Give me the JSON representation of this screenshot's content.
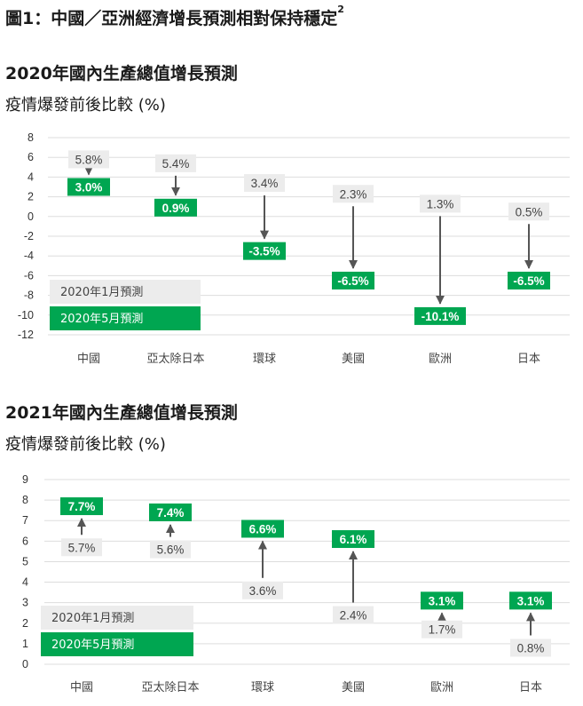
{
  "figure_title": "圖1：中國／亞洲經濟增長預測相對保持穩定",
  "figure_footnote": "2",
  "colors": {
    "before_box": "#ececec",
    "after_box": "#00a651",
    "arrow": "#555555",
    "grid": "#dddddd"
  },
  "chart_data": [
    {
      "type": "arrow",
      "title": "2020年國內生產總值增長預測",
      "subtitle": "疫情爆發前後比較 (%)",
      "categories": [
        "中國",
        "亞太除日本",
        "環球",
        "美國",
        "歐洲",
        "日本"
      ],
      "series": [
        {
          "name": "2020年1月預測",
          "values": [
            5.8,
            5.4,
            3.4,
            2.3,
            1.3,
            0.5
          ],
          "labels": [
            "5.8%",
            "5.4%",
            "3.4%",
            "2.3%",
            "1.3%",
            "0.5%"
          ]
        },
        {
          "name": "2020年5月預測",
          "values": [
            3.0,
            0.9,
            -3.5,
            -6.5,
            -10.1,
            -6.5
          ],
          "labels": [
            "3.0%",
            "0.9%",
            "-3.5%",
            "-6.5%",
            "-10.1%",
            "-6.5%"
          ]
        }
      ],
      "yticks": [
        8,
        6,
        4,
        2,
        0,
        -2,
        -4,
        -6,
        -8,
        -10,
        -12
      ],
      "ylim": [
        -12,
        8
      ],
      "grid": true,
      "legend": "bottom-left"
    },
    {
      "type": "arrow",
      "title": "2021年國內生產總值增長預測",
      "subtitle": "疫情爆發前後比較 (%)",
      "categories": [
        "中國",
        "亞太除日本",
        "環球",
        "美國",
        "歐洲",
        "日本"
      ],
      "series": [
        {
          "name": "2020年1月預測",
          "values": [
            5.7,
            5.6,
            3.6,
            2.4,
            1.7,
            0.8
          ],
          "labels": [
            "5.7%",
            "5.6%",
            "3.6%",
            "2.4%",
            "1.7%",
            "0.8%"
          ]
        },
        {
          "name": "2020年5月預測",
          "values": [
            7.7,
            7.4,
            6.6,
            6.1,
            3.1,
            3.1
          ],
          "labels": [
            "7.7%",
            "7.4%",
            "6.6%",
            "6.1%",
            "3.1%",
            "3.1%"
          ]
        }
      ],
      "yticks": [
        9,
        8,
        7,
        6,
        5,
        4,
        3,
        2,
        1,
        0
      ],
      "ylim": [
        0,
        9
      ],
      "grid": true,
      "legend": "bottom-left"
    }
  ]
}
